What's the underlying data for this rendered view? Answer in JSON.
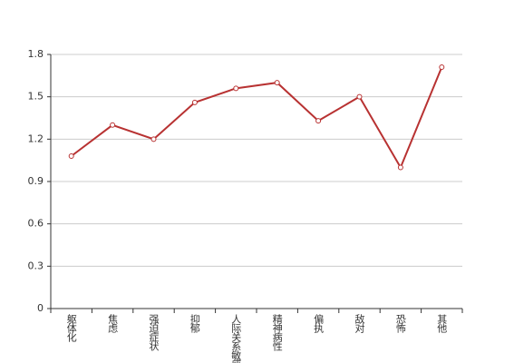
{
  "chart_data": {
    "type": "line",
    "categories": [
      "躯体化",
      "焦虑",
      "强迫症状",
      "抑郁",
      "人际关系敏感",
      "精神病性",
      "偏执",
      "敌对",
      "恐怖",
      "其他"
    ],
    "values": [
      1.08,
      1.3,
      1.2,
      1.46,
      1.56,
      1.6,
      1.33,
      1.5,
      1.0,
      1.71
    ],
    "color": "#b83232",
    "ylim": [
      0,
      1.8
    ],
    "yticks": [
      0,
      0.3,
      0.6,
      0.9,
      1.2,
      1.5,
      1.8
    ],
    "grid": true
  }
}
